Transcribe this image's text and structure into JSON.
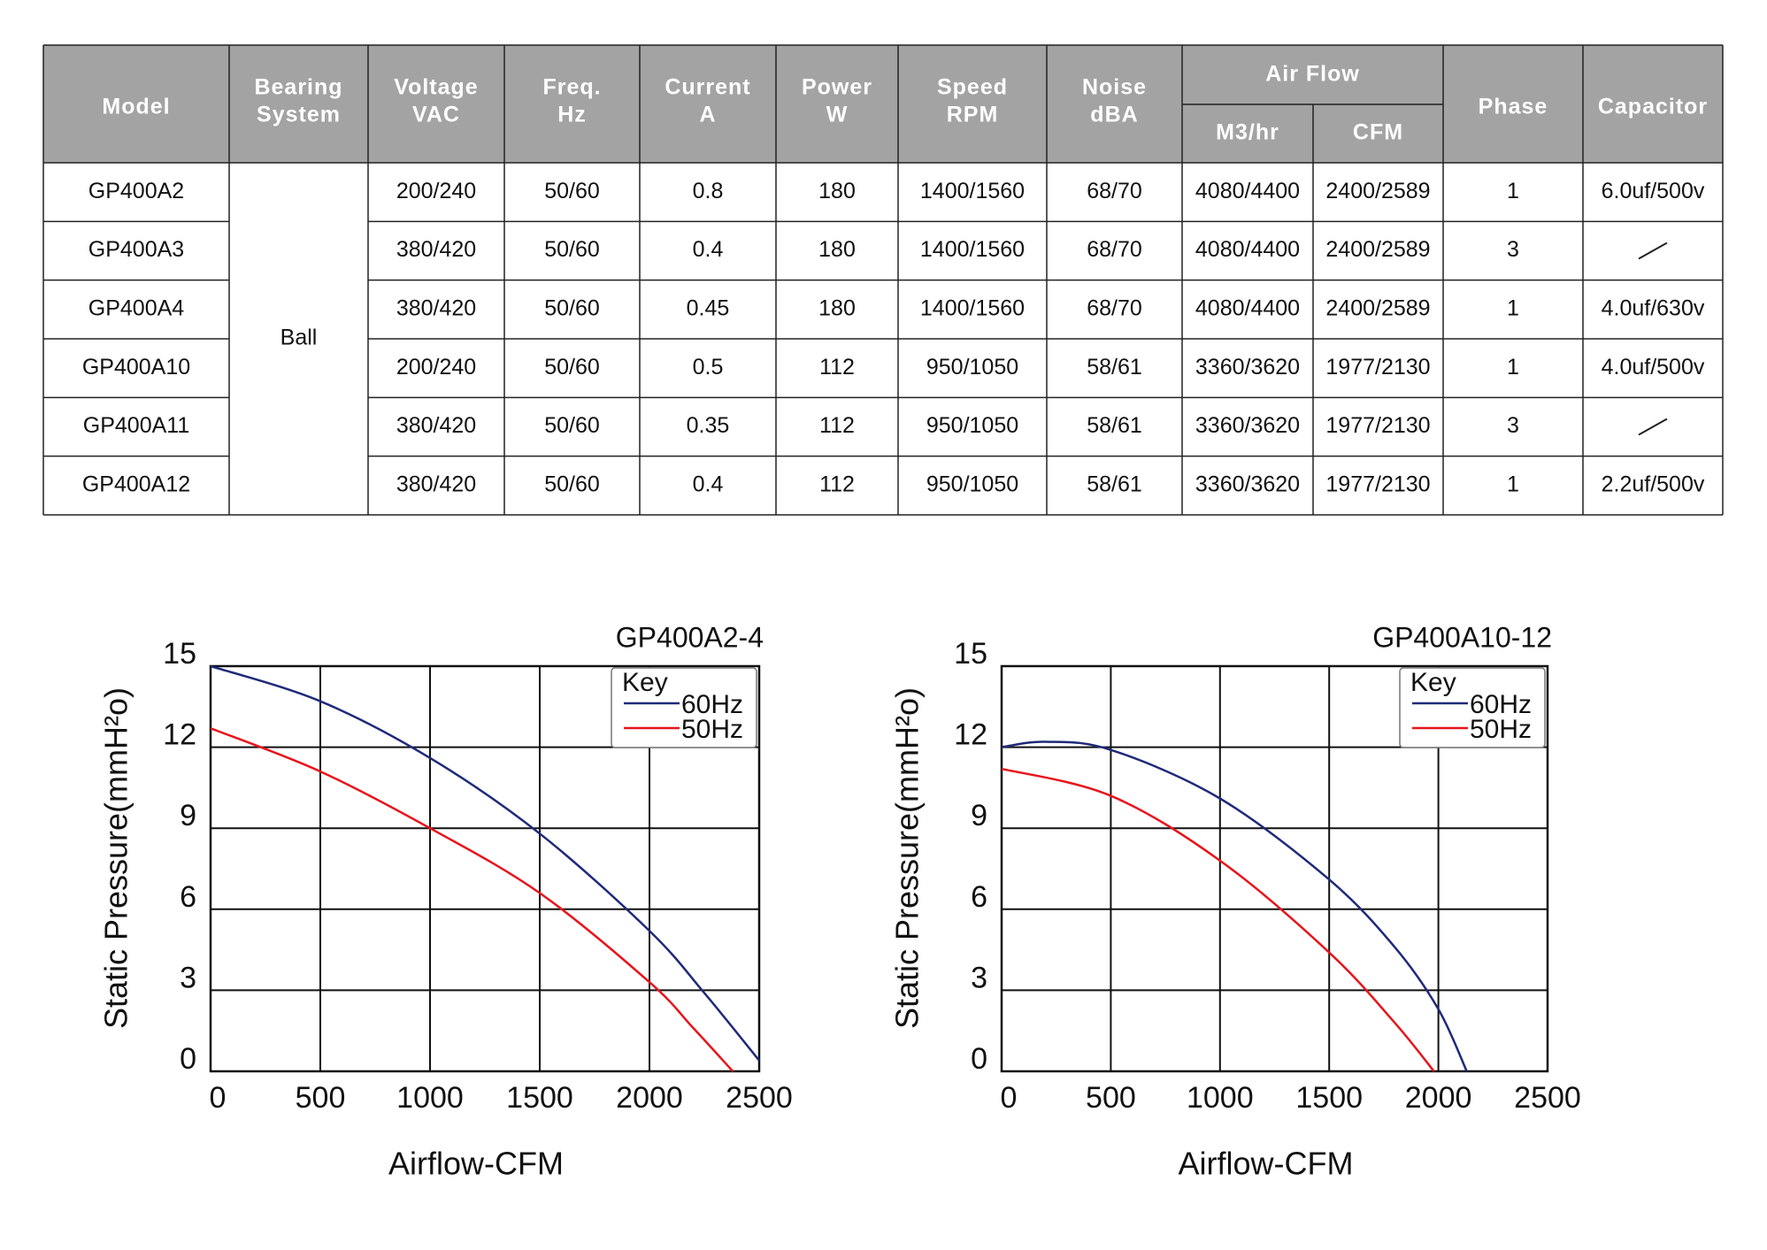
{
  "table": {
    "headers": [
      [
        "Model"
      ],
      [
        "Bearing",
        "System"
      ],
      [
        "Voltage",
        "VAC"
      ],
      [
        "Freq.",
        "Hz"
      ],
      [
        "Current",
        "A"
      ],
      [
        "Power",
        "W"
      ],
      [
        "Speed",
        "RPM"
      ],
      [
        "Noise",
        "dBA"
      ],
      [
        "M3/hr"
      ],
      [
        "CFM"
      ],
      [
        "Phase"
      ],
      [
        "Capacitor"
      ]
    ],
    "airflow_group": "Air Flow",
    "bearing": "Ball",
    "rows": [
      [
        "GP400A2",
        "200/240",
        "50/60",
        "0.8",
        "180",
        "1400/1560",
        "68/70",
        "4080/4400",
        "2400/2589",
        "1",
        "6.0uf/500v"
      ],
      [
        "GP400A3",
        "380/420",
        "50/60",
        "0.4",
        "180",
        "1400/1560",
        "68/70",
        "4080/4400",
        "2400/2589",
        "3",
        null
      ],
      [
        "GP400A4",
        "380/420",
        "50/60",
        "0.45",
        "180",
        "1400/1560",
        "68/70",
        "4080/4400",
        "2400/2589",
        "1",
        "4.0uf/630v"
      ],
      [
        "GP400A10",
        "200/240",
        "50/60",
        "0.5",
        "112",
        "950/1050",
        "58/61",
        "3360/3620",
        "1977/2130",
        "1",
        "4.0uf/500v"
      ],
      [
        "GP400A11",
        "380/420",
        "50/60",
        "0.35",
        "112",
        "950/1050",
        "58/61",
        "3360/3620",
        "1977/2130",
        "3",
        null
      ],
      [
        "GP400A12",
        "380/420",
        "50/60",
        "0.4",
        "112",
        "950/1050",
        "58/61",
        "3360/3620",
        "1977/2130",
        "1",
        "2.2uf/500v"
      ]
    ]
  },
  "chart_data": [
    {
      "type": "line",
      "title": "GP400A2-4",
      "x_label": "Airflow-CFM",
      "y_label": "Static Pressure(mmH²o)",
      "xlim": [
        0,
        2500
      ],
      "ylim": [
        0,
        15
      ],
      "xticks": [
        0,
        500,
        1000,
        1500,
        2000,
        2500
      ],
      "yticks": [
        0,
        3,
        6,
        9,
        12,
        15
      ],
      "grid": true,
      "legend_title": "Key",
      "legend": "upper right",
      "series": [
        {
          "name": "60Hz",
          "color": "#1f2a7a",
          "x": [
            0,
            500,
            1000,
            1500,
            2000,
            2250,
            2500
          ],
          "values": [
            15,
            13.7,
            11.6,
            8.8,
            5.2,
            2.9,
            0.4
          ]
        },
        {
          "name": "50Hz",
          "color": "#e8141c",
          "x": [
            0,
            500,
            1000,
            1500,
            2000,
            2200,
            2380
          ],
          "values": [
            12.7,
            11.1,
            9.0,
            6.6,
            3.3,
            1.6,
            0
          ]
        }
      ]
    },
    {
      "type": "line",
      "title": "GP400A10-12",
      "x_label": "Airflow-CFM",
      "y_label": "Static Pressure(mmH²o)",
      "xlim": [
        0,
        2500
      ],
      "ylim": [
        0,
        15
      ],
      "xticks": [
        0,
        500,
        1000,
        1500,
        2000,
        2500
      ],
      "yticks": [
        0,
        3,
        6,
        9,
        12,
        15
      ],
      "grid": true,
      "legend_title": "Key",
      "legend": "upper right",
      "series": [
        {
          "name": "60Hz",
          "color": "#1f2a7a",
          "x": [
            0,
            200,
            500,
            1000,
            1500,
            1800,
            2000,
            2130
          ],
          "values": [
            12,
            12.2,
            11.9,
            10.1,
            7.1,
            4.6,
            2.3,
            0
          ]
        },
        {
          "name": "50Hz",
          "color": "#e8141c",
          "x": [
            0,
            500,
            1000,
            1500,
            1800,
            1980
          ],
          "values": [
            11.2,
            10.2,
            7.8,
            4.4,
            1.8,
            0
          ]
        }
      ]
    }
  ]
}
